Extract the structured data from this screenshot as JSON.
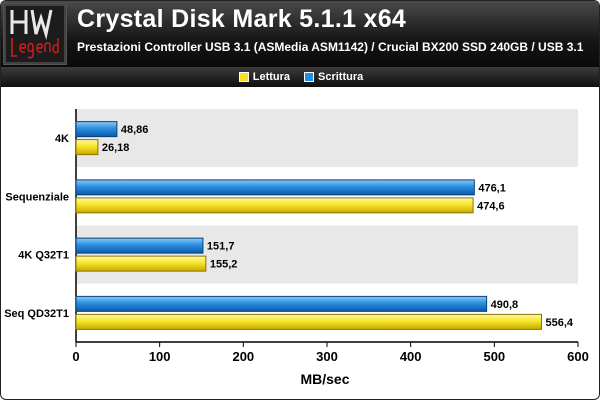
{
  "header": {
    "title": "Crystal Disk Mark 5.1.1 x64",
    "subtitle": "Prestazioni Controller USB 3.1 (ASMedia ASM1142) / Crucial BX200 SSD 240GB / USB 3.1"
  },
  "logo": {
    "text": "HW Legend"
  },
  "colors": {
    "lettura": "#f5e224",
    "scrittura": "#1f8fe0",
    "band": "#e8e8e8"
  },
  "chart_data": {
    "type": "bar",
    "orientation": "horizontal",
    "categories": [
      "4K",
      "Sequenziale",
      "4K Q32T1",
      "Seq QD32T1"
    ],
    "series": [
      {
        "name": "Lettura",
        "values": [
          26.18,
          474.6,
          155.2,
          556.4
        ],
        "labels": [
          "26,18",
          "474,6",
          "155,2",
          "556,4"
        ]
      },
      {
        "name": "Scrittura",
        "values": [
          48.86,
          476.1,
          151.7,
          490.8
        ],
        "labels": [
          "48,86",
          "476,1",
          "151,7",
          "490,8"
        ]
      }
    ],
    "xlabel": "MB/sec",
    "ylabel": "",
    "xlim": [
      0,
      600
    ],
    "xticks": [
      0,
      100,
      200,
      300,
      400,
      500,
      600
    ],
    "legend": "top-center",
    "grid": false
  }
}
